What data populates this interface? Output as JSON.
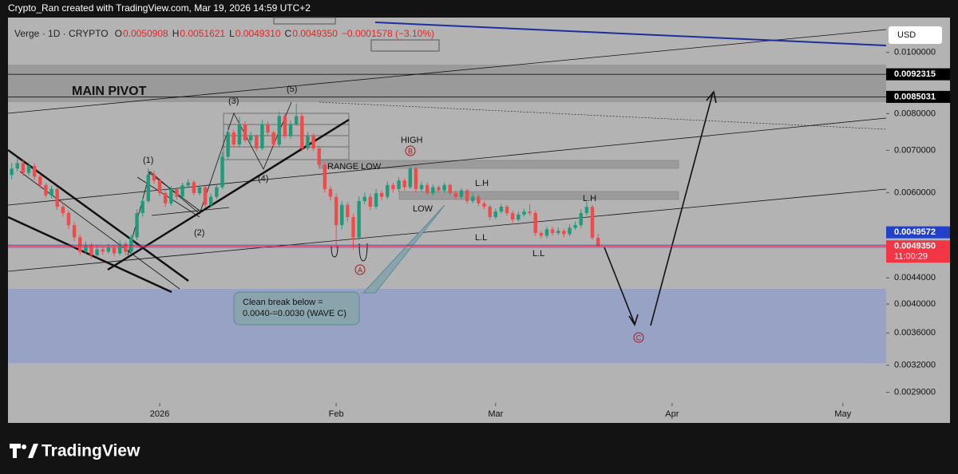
{
  "header": {
    "credit": "Crypto_Ran created with TradingView.com, Mar 19, 2026 14:59 UTC+2"
  },
  "chart_data": {
    "type": "candlestick",
    "symbol": "Verge · 1D · CRYPTO",
    "ohlc_legend": [
      {
        "key": "O",
        "value": "0.0050908"
      },
      {
        "key": "H",
        "value": "0.0051621"
      },
      {
        "key": "L",
        "value": "0.0049310"
      },
      {
        "key": "C",
        "value": "0.0049350"
      }
    ],
    "change": "−0.0001578 (−3.10%)",
    "currency": "USD",
    "x": [
      -26,
      -25,
      -24,
      -23,
      -22,
      -21,
      -20,
      -19,
      -18,
      -17,
      -16,
      -15,
      -14,
      -13,
      -12,
      -11,
      -10,
      -9,
      -8,
      -7,
      -6,
      -5,
      -4,
      -3,
      -2,
      -1,
      0,
      1,
      2,
      3,
      4,
      5,
      6,
      7,
      8,
      9,
      10,
      11,
      12,
      13,
      14,
      15,
      16,
      17,
      18,
      19,
      20,
      21,
      22,
      23,
      24,
      25,
      26,
      27,
      28,
      29,
      30,
      31,
      32,
      33,
      34,
      35,
      36,
      37,
      38,
      39,
      40,
      41,
      42,
      43,
      44,
      45,
      46,
      47,
      48,
      49,
      50,
      51,
      52,
      53,
      54,
      55,
      56,
      57,
      58,
      59,
      60,
      61,
      62,
      63,
      64,
      65,
      66,
      67,
      68,
      69,
      70,
      71,
      72,
      73,
      74,
      75,
      76,
      77
    ],
    "open": [
      0.0064,
      0.00655,
      0.00668,
      0.00645,
      0.00661,
      0.00636,
      0.00617,
      0.00594,
      0.00608,
      0.0057,
      0.00557,
      0.00533,
      0.0051,
      0.00484,
      0.00495,
      0.00478,
      0.00488,
      0.00484,
      0.00492,
      0.00481,
      0.00498,
      0.00484,
      0.0051,
      0.00557,
      0.00582,
      0.00641,
      0.00627,
      0.00599,
      0.00577,
      0.00608,
      0.00591,
      0.00616,
      0.00623,
      0.00599,
      0.00612,
      0.00574,
      0.00591,
      0.00612,
      0.00684,
      0.00747,
      0.00715,
      0.0077,
      0.00726,
      0.00737,
      0.00705,
      0.0077,
      0.00747,
      0.00715,
      0.00793,
      0.00737,
      0.0077,
      0.00793,
      0.00705,
      0.00737,
      0.00705,
      0.00664,
      0.00608,
      0.00591,
      0.00533,
      0.00574,
      0.00549,
      0.0051,
      0.00582,
      0.00591,
      0.0057,
      0.00599,
      0.00591,
      0.00617,
      0.00608,
      0.00627,
      0.00612,
      0.00655,
      0.00608,
      0.00617,
      0.00599,
      0.00612,
      0.00605,
      0.00617,
      0.00599,
      0.00591,
      0.00605,
      0.00582,
      0.00591,
      0.00577,
      0.0057,
      0.00549,
      0.0056,
      0.0057,
      0.00557,
      0.00544,
      0.00554,
      0.0056,
      0.00557,
      0.00518,
      0.00513,
      0.00525,
      0.00518,
      0.00522,
      0.00516,
      0.00528,
      0.00533,
      0.00557,
      0.0057,
      0.0050908
    ],
    "high": [
      0.00668,
      0.0068,
      0.00675,
      0.0067,
      0.00668,
      0.00642,
      0.00622,
      0.00615,
      0.00612,
      0.00578,
      0.00562,
      0.0054,
      0.00515,
      0.00502,
      0.005,
      0.00495,
      0.00494,
      0.00498,
      0.00496,
      0.00504,
      0.00502,
      0.00515,
      0.00565,
      0.0059,
      0.00655,
      0.0065,
      0.00632,
      0.00604,
      0.00615,
      0.00612,
      0.00622,
      0.0063,
      0.00628,
      0.00618,
      0.00616,
      0.00598,
      0.00618,
      0.00695,
      0.0077,
      0.00755,
      0.0079,
      0.00778,
      0.00748,
      0.00742,
      0.00782,
      0.00778,
      0.00752,
      0.00805,
      0.008,
      0.0078,
      0.0083,
      0.008,
      0.00748,
      0.00745,
      0.00712,
      0.0067,
      0.00615,
      0.00598,
      0.00582,
      0.0058,
      0.00555,
      0.00592,
      0.006,
      0.00598,
      0.00608,
      0.00605,
      0.00625,
      0.00622,
      0.00635,
      0.00632,
      0.00665,
      0.0066,
      0.00624,
      0.00622,
      0.00618,
      0.00616,
      0.00622,
      0.0062,
      0.00604,
      0.0061,
      0.00608,
      0.00598,
      0.00596,
      0.00582,
      0.00574,
      0.00566,
      0.00576,
      0.00574,
      0.00562,
      0.0056,
      0.00566,
      0.00575,
      0.00562,
      0.00522,
      0.0053,
      0.0053,
      0.00528,
      0.00526,
      0.00534,
      0.0054,
      0.00565,
      0.0058,
      0.00574,
      0.0051621
    ],
    "low": [
      0.0063,
      0.00648,
      0.00638,
      0.00638,
      0.00628,
      0.0061,
      0.00588,
      0.00588,
      0.00563,
      0.0055,
      0.00525,
      0.00503,
      0.00478,
      0.0048,
      0.00472,
      0.00474,
      0.00478,
      0.0048,
      0.00476,
      0.00478,
      0.00478,
      0.0048,
      0.00505,
      0.0055,
      0.00578,
      0.0062,
      0.00592,
      0.0057,
      0.00572,
      0.00585,
      0.00586,
      0.0061,
      0.00594,
      0.00594,
      0.00568,
      0.0057,
      0.00586,
      0.00608,
      0.00678,
      0.00708,
      0.0071,
      0.0072,
      0.00718,
      0.00698,
      0.007,
      0.0074,
      0.00708,
      0.0071,
      0.0073,
      0.0073,
      0.00765,
      0.00698,
      0.007,
      0.00698,
      0.00655,
      0.006,
      0.00583,
      0.0049,
      0.00525,
      0.0054,
      0.00488,
      0.00505,
      0.00575,
      0.00563,
      0.00565,
      0.00584,
      0.00586,
      0.006,
      0.00602,
      0.00605,
      0.00608,
      0.006,
      0.00602,
      0.00594,
      0.00594,
      0.006,
      0.006,
      0.00594,
      0.00586,
      0.00586,
      0.00576,
      0.00577,
      0.00572,
      0.00565,
      0.00543,
      0.00545,
      0.00556,
      0.00552,
      0.00538,
      0.0054,
      0.0055,
      0.00552,
      0.00512,
      0.00508,
      0.00508,
      0.00513,
      0.00514,
      0.0051,
      0.00512,
      0.00524,
      0.00528,
      0.00552,
      0.00505,
      0.004931
    ],
    "close": [
      0.00655,
      0.00668,
      0.00645,
      0.00661,
      0.00636,
      0.00617,
      0.00594,
      0.00608,
      0.0057,
      0.00557,
      0.00533,
      0.0051,
      0.00484,
      0.00495,
      0.00478,
      0.00488,
      0.00484,
      0.00492,
      0.00481,
      0.00498,
      0.00484,
      0.0051,
      0.00557,
      0.00582,
      0.00641,
      0.00627,
      0.00599,
      0.00577,
      0.00608,
      0.00591,
      0.00616,
      0.00623,
      0.00599,
      0.00612,
      0.00574,
      0.00591,
      0.00612,
      0.00684,
      0.00747,
      0.00715,
      0.0077,
      0.00726,
      0.00737,
      0.00705,
      0.0077,
      0.00747,
      0.00715,
      0.00793,
      0.00737,
      0.0077,
      0.00793,
      0.00705,
      0.00737,
      0.00705,
      0.00664,
      0.00608,
      0.00591,
      0.00533,
      0.00574,
      0.00549,
      0.0051,
      0.00582,
      0.00591,
      0.0057,
      0.00599,
      0.00591,
      0.00617,
      0.00608,
      0.00627,
      0.00612,
      0.00655,
      0.00608,
      0.00617,
      0.00599,
      0.00612,
      0.00605,
      0.00617,
      0.00599,
      0.00591,
      0.00605,
      0.00582,
      0.00591,
      0.00577,
      0.0057,
      0.00549,
      0.0056,
      0.0057,
      0.00557,
      0.00544,
      0.00554,
      0.0056,
      0.00557,
      0.00518,
      0.00513,
      0.00525,
      0.00518,
      0.00522,
      0.00516,
      0.00528,
      0.00533,
      0.00557,
      0.0057,
      0.0050928,
      0.004935
    ],
    "up_color": "#1f9a7a",
    "down_color": "#ee4b4b",
    "log_scale": true,
    "xlim": [
      -26.65,
      127.6
    ],
    "ylim": [
      0.00279,
      0.01135
    ],
    "xticks": [
      {
        "value": 0,
        "label": "2026"
      },
      {
        "value": 31,
        "label": "Feb"
      },
      {
        "value": 59,
        "label": "Mar"
      },
      {
        "value": 90,
        "label": "Apr"
      },
      {
        "value": 120,
        "label": "May"
      }
    ],
    "yticks": [
      {
        "value": 0.01,
        "label": "0.0100000"
      },
      {
        "value": 0.008,
        "label": "0.0080000"
      },
      {
        "value": 0.007,
        "label": "0.0070000"
      },
      {
        "value": 0.006,
        "label": "0.0060000"
      },
      {
        "value": 0.0044,
        "label": "0.0044000"
      },
      {
        "value": 0.004,
        "label": "0.0040000"
      },
      {
        "value": 0.0036,
        "label": "0.0036000"
      },
      {
        "value": 0.0032,
        "label": "0.0032000"
      },
      {
        "value": 0.0029,
        "label": "0.0029000"
      }
    ],
    "price_labels": [
      {
        "value": 0.0092315,
        "label": "0.0092315",
        "color": "#000000"
      },
      {
        "value": 0.0085031,
        "label": "0.0085031",
        "color": "#000000"
      },
      {
        "value": 0.0049572,
        "label": "0.0049572",
        "color": "#2340c8"
      },
      {
        "value": 0.004935,
        "label": "0.0049350",
        "color": "#f23645"
      }
    ],
    "countdown": "11:00:29",
    "annotations": [
      "MAIN PIVOT",
      "(1)",
      "(2)",
      "(3)",
      "(4)",
      "(5)",
      "RANGE LOW",
      "HIGH",
      "B",
      "LOW",
      "L.H",
      "L.L",
      "L.L",
      "L.H",
      "A",
      "C"
    ],
    "callout": [
      "Clean break below =",
      "0.0040-=0.0030 (WAVE C)"
    ]
  },
  "footer": {
    "brand": "TradingView"
  }
}
